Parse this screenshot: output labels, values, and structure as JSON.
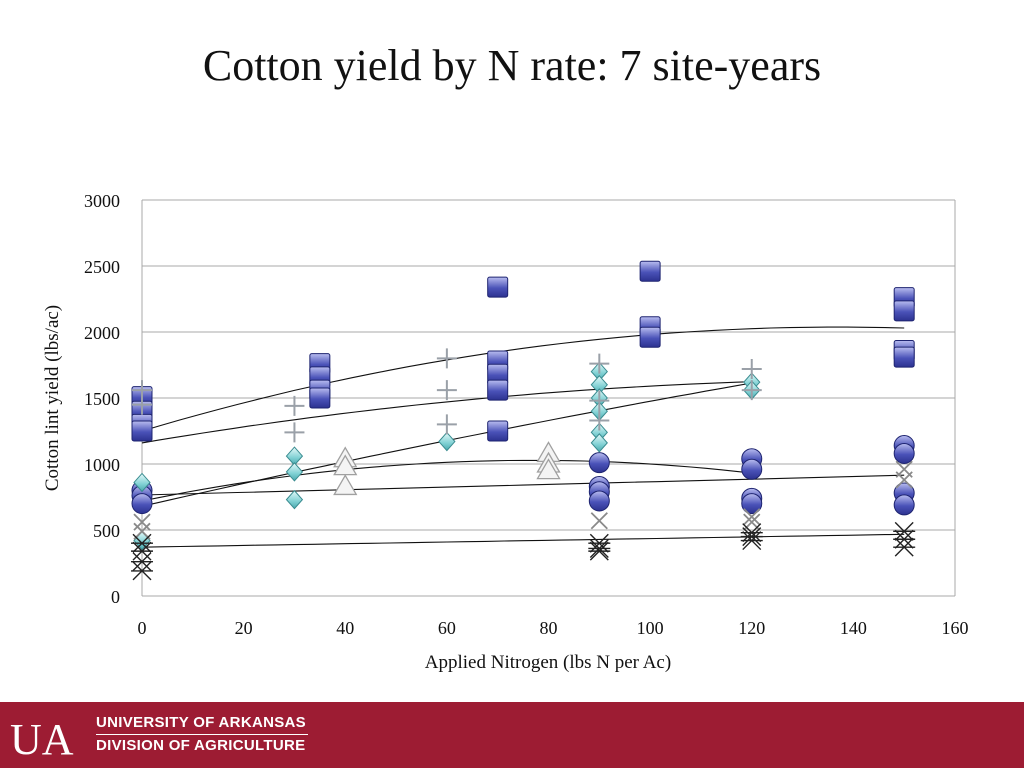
{
  "slide": {
    "title": "Cotton yield by N rate: 7 site-years"
  },
  "footer": {
    "logo_text": "UA",
    "line1": "UNIVERSITY OF ARKANSAS",
    "line2": "DIVISION OF AGRICULTURE",
    "background_color": "#9d1c33"
  },
  "chart_data": {
    "type": "scatter",
    "xlabel": "Applied Nitrogen (lbs N per Ac)",
    "ylabel": "Cotton lint yield (lbs/ac)",
    "xlim": [
      0,
      160
    ],
    "ylim": [
      0,
      3000
    ],
    "xticks": [
      0,
      20,
      40,
      60,
      80,
      100,
      120,
      140,
      160
    ],
    "yticks": [
      0,
      500,
      1000,
      1500,
      2000,
      2500,
      3000
    ],
    "grid": "horizontal",
    "legend": "none",
    "series": [
      {
        "marker": "square",
        "color": "#4a52b8",
        "x": [
          0,
          0,
          0,
          0,
          35,
          35,
          35,
          35,
          70,
          70,
          70,
          70,
          70,
          100,
          100,
          100,
          150,
          150,
          150,
          150
        ],
        "y": [
          1510,
          1400,
          1300,
          1250,
          1760,
          1660,
          1560,
          1500,
          2340,
          1780,
          1680,
          1560,
          1250,
          2460,
          2040,
          1960,
          2260,
          2160,
          1860,
          1810
        ],
        "trend_x": [
          0,
          150
        ],
        "trend_coeffs": [
          1250,
          11.5,
          -0.042
        ]
      },
      {
        "marker": "circle",
        "color": "#4a52b8",
        "x": [
          0,
          0,
          0,
          90,
          90,
          90,
          90,
          120,
          120,
          120,
          120,
          150,
          150,
          150,
          150
        ],
        "y": [
          800,
          760,
          700,
          1010,
          830,
          790,
          720,
          1040,
          960,
          740,
          700,
          1140,
          1080,
          780,
          690
        ],
        "trend_x": [
          0,
          150
        ],
        "trend_coeffs": [
          765,
          1.0,
          0
        ]
      },
      {
        "marker": "diamond",
        "color": "#7fd0d3",
        "x": [
          0,
          0,
          30,
          30,
          30,
          60,
          90,
          90,
          90,
          90,
          90,
          90,
          120,
          120
        ],
        "y": [
          860,
          420,
          1060,
          940,
          730,
          1170,
          1700,
          1600,
          1500,
          1400,
          1240,
          1160,
          1620,
          1560
        ],
        "trend_x": [
          0,
          120
        ],
        "trend_coeffs": [
          680,
          8.8,
          -0.0085
        ]
      },
      {
        "marker": "plus",
        "color": "#9aa0a8",
        "x": [
          0,
          0,
          30,
          30,
          60,
          60,
          60,
          90,
          90,
          90,
          120,
          120
        ],
        "y": [
          1560,
          1450,
          1440,
          1240,
          1800,
          1560,
          1300,
          1760,
          1480,
          1330,
          1720,
          1560
        ],
        "trend_x": [
          0,
          120
        ],
        "trend_coeffs": [
          1160,
          6.5,
          -0.022
        ]
      },
      {
        "marker": "triangle",
        "color": "#c0c0c0",
        "x": [
          40,
          40,
          40,
          80,
          80,
          80
        ],
        "y": [
          1040,
          980,
          830,
          1080,
          1000,
          950
        ],
        "trend_x": [
          0,
          120
        ],
        "trend_coeffs": [
          720,
          8.0,
          -0.052
        ]
      },
      {
        "marker": "x",
        "color": "#7a7a7a",
        "x": [
          0,
          0,
          90,
          120,
          120,
          150,
          150
        ],
        "y": [
          560,
          490,
          570,
          600,
          560,
          960,
          880
        ]
      },
      {
        "marker": "star",
        "color": "#222222",
        "x": [
          0,
          0,
          0,
          0,
          90,
          90,
          90,
          120,
          120,
          120,
          150,
          150,
          150
        ],
        "y": [
          400,
          340,
          260,
          190,
          400,
          360,
          340,
          480,
          450,
          420,
          490,
          430,
          370
        ],
        "trend_x": [
          0,
          150
        ],
        "trend_coeffs": [
          370,
          0.65,
          0
        ]
      }
    ]
  }
}
